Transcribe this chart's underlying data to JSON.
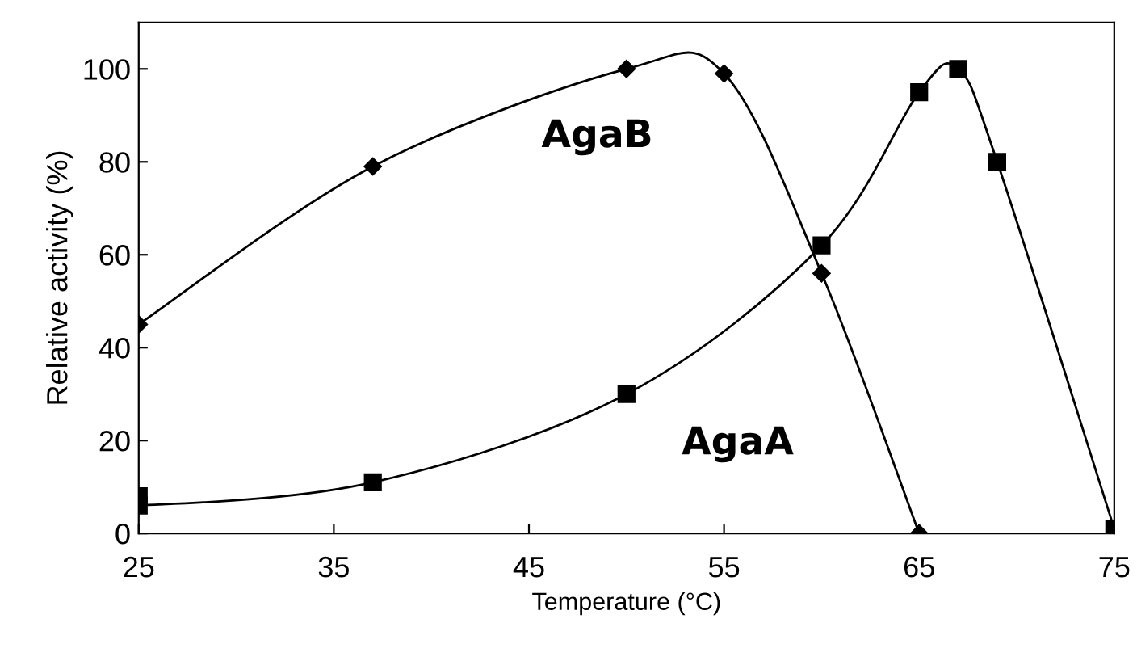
{
  "chart_data": {
    "type": "line",
    "xlabel": "Temperature (°C)",
    "ylabel": "Relative activity (%)",
    "xlim": [
      25,
      75
    ],
    "ylim": [
      0,
      110
    ],
    "xticks": [
      25,
      35,
      45,
      55,
      65,
      75
    ],
    "yticks": [
      0,
      20,
      40,
      60,
      80,
      100
    ],
    "grid": false,
    "legend": false,
    "series": [
      {
        "name": "AgaB",
        "color": "#000000",
        "marker": "diamond",
        "x": [
          25,
          37,
          50,
          55,
          60,
          65
        ],
        "values": [
          45,
          79,
          100,
          99,
          56,
          0
        ]
      },
      {
        "name": "AgaA",
        "color": "#000000",
        "marker": "square",
        "x": [
          25,
          25,
          37,
          50,
          60,
          65,
          67,
          69,
          75
        ],
        "values": [
          8,
          6,
          11,
          30,
          62,
          95,
          100,
          80,
          1
        ]
      }
    ]
  }
}
